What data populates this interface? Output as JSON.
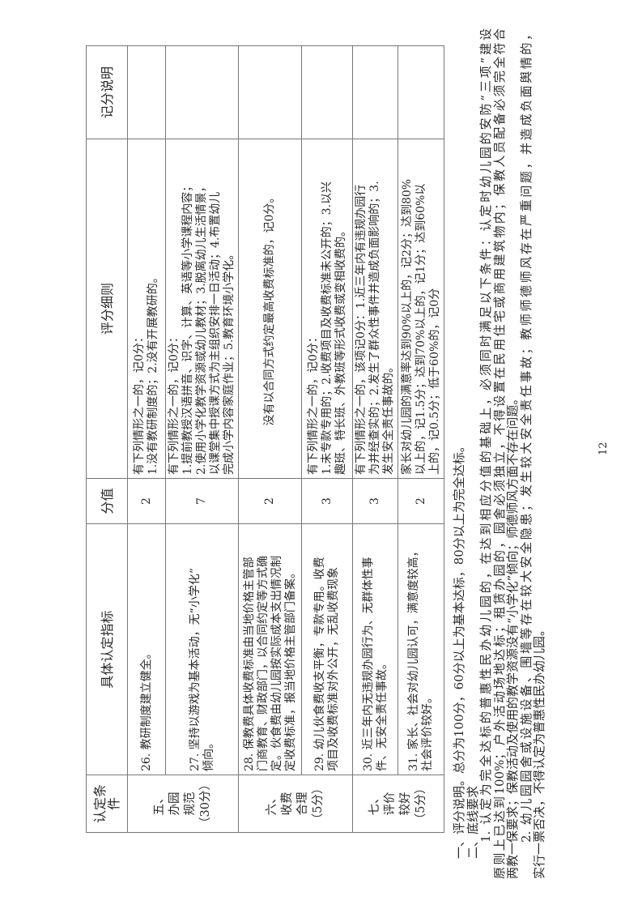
{
  "headers": [
    "认定条件",
    "具体认定指标",
    "分值",
    "评分细则",
    "记分说明"
  ],
  "categories": [
    {
      "lines": [
        "五、",
        "办园",
        "规范",
        "（30分）"
      ]
    },
    {
      "lines": [
        "六、",
        "收费",
        "合理",
        "（5分）"
      ]
    },
    {
      "lines": [
        "七、",
        "评价",
        "较好",
        "（5分）"
      ]
    }
  ],
  "rows": [
    {
      "indicator": [
        "26. 教研制度建立健全。"
      ],
      "score": "2",
      "rules": [
        "有下列情形之一的，记0分：",
        "1.没有教研制度的；2.没有开展教研的。"
      ]
    },
    {
      "indicator": [
        "27. 坚持以游戏为基本活动，无“小学化”",
        "倾向。"
      ],
      "score": "7",
      "rules": [
        "有下列情形之一的，记0分：",
        "1.提前教授汉语拼音、识字、计算、英语等小学课程内容；",
        "2.使用小学化教学资源或幼儿教材；3.脱离幼儿生活情景，",
        "以课堂集中授课方式为主组织安排一日活动；4.布置幼儿",
        "完成小学内容家庭作业；5.教育环境小学化。"
      ]
    },
    {
      "indicator": [
        "28. 保教费具体收费标准由当地价格主管部",
        "门商教育、财政部门，以合同约定等方式确",
        "定。伙食费由幼儿园按实际成本支出情况制",
        "定收费标准，报当地价格主管部门备案。"
      ],
      "score": "2",
      "rules": [
        "没有以合同方式约定最高收费标准的，记0分。"
      ]
    },
    {
      "indicator": [
        "29. 幼儿伙食费收支平衡，专款专用。收费",
        "项目及收费标准对外公开，无乱收费现象"
      ],
      "score": "3",
      "rules": [
        "有下列情形之一的，记0分：",
        "1.未专款专用的；2.收费项目及收费标准未公开的；3.以兴",
        "趣班、特长班、外教班等形式收费或变相收费的。"
      ]
    },
    {
      "indicator": [
        "30. 近三年内无违规办园行为、无群体性事",
        "件、无安全责任事故。"
      ],
      "score": "3",
      "rules": [
        "有下列情形之一的，该项记0分：1.近三年内有违规办园行",
        "为并经查实的；2.发生了群众性事件并造成负面影响的；3.",
        "发生安全责任事故的。"
      ]
    },
    {
      "indicator": [
        "31. 家长、社会对幼儿园认可，满意度较高，",
        "社会评价较好。"
      ],
      "score": "2",
      "rules": [
        "家长对幼儿园的满意率达到90%以上的，记2分；达到80%",
        "以上的，记1.5分；达到70%以上的，记1分；达到60%以",
        "上的，记0.5分；低于60%的，记0分"
      ]
    }
  ],
  "notes": [
    "一、评分说明。总分为100分，60分以上为基本达标，80分以上为完全达标。",
    "二、底线要求",
    "1. 认定为完全达标的普惠性民办幼儿园的，在达到相应分值的基础上，必须同时满足以下条件：认定时幼儿园的安防“三项”建设",
    "原则上已达到100%；户外活动场地达标；租赁办园的，园舍必须独立，不得设置在民用住宅或商用建筑物内；保教人员配备必须完全符合",
    "两教一保要求；保教活动及使用的教学资源没有“小学化”倾向；师德师风方面不存在问题。",
    "2. 幼儿园园舍或设施设备、围墙等存在较大安全隐患；发生较大安全责任事故；教师师德师风存在严重问题，并造成负面舆情的，",
    "实行一票否决，不得认定为普惠性民办幼儿园。"
  ],
  "page_number": "12"
}
